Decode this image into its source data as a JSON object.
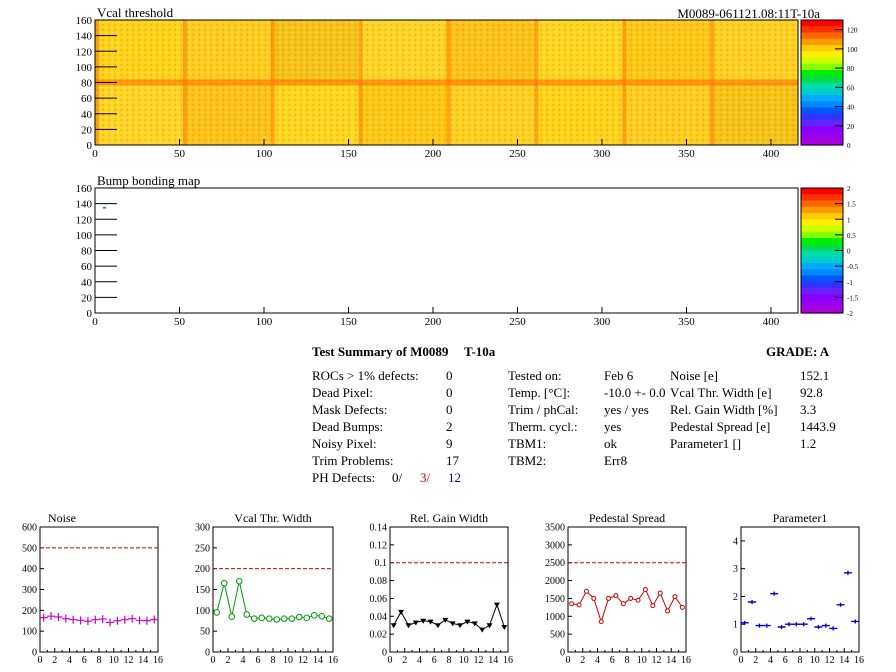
{
  "module_id": "M0089-061121.08:11T-10a",
  "map_vcal": {
    "title": "Vcal threshold",
    "xticks": [
      0,
      50,
      100,
      150,
      200,
      250,
      300,
      350,
      400
    ],
    "yticks": [
      0,
      20,
      40,
      60,
      80,
      100,
      120,
      140,
      160
    ],
    "xrange": [
      0,
      416
    ],
    "yrange": [
      0,
      160
    ],
    "colorbar_ticks": [
      "120",
      "100",
      "80",
      "60",
      "40",
      "20",
      "0"
    ],
    "colorbar_values": [
      120,
      100,
      80,
      60,
      40,
      20,
      0
    ],
    "colorbar_range": [
      0,
      130
    ]
  },
  "map_bump": {
    "title": "Bump bonding map",
    "xticks": [
      0,
      50,
      100,
      150,
      200,
      250,
      300,
      350,
      400
    ],
    "yticks": [
      0,
      20,
      40,
      60,
      80,
      100,
      120,
      140,
      160
    ],
    "xrange": [
      0,
      416
    ],
    "yrange": [
      0,
      160
    ],
    "colorbar_ticks": [
      "2",
      "1.5",
      "1",
      "0.5",
      "0",
      "-0.5",
      "-1",
      "-1.5",
      "-2"
    ],
    "colorbar_values": [
      2,
      1.5,
      1,
      0.5,
      0,
      -0.5,
      -1,
      -1.5,
      -2
    ],
    "colorbar_range": [
      -2,
      2
    ]
  },
  "summary": {
    "title": "Test Summary of M0089",
    "tag": "T-10a",
    "grade": "GRADE:  A",
    "rows": [
      {
        "label": "ROCs > 1% defects:",
        "value": "0"
      },
      {
        "label": "Dead Pixel:",
        "value": "0"
      },
      {
        "label": "Mask Defects:",
        "value": "0"
      },
      {
        "label": "Dead Bumps:",
        "value": "2"
      },
      {
        "label": "Noisy Pixel:",
        "value": "9"
      },
      {
        "label": "Trim Problems:",
        "value": "17"
      }
    ],
    "ph_label": "PH Defects:",
    "ph_values": [
      "0/",
      "3/",
      "12"
    ],
    "tests": [
      {
        "label": "Tested on:",
        "value": "Feb 6"
      },
      {
        "label": "Temp. [°C]:",
        "value": "-10.0 +- 0.0"
      },
      {
        "label": "Trim / phCal:",
        "value": "yes / yes"
      },
      {
        "label": "Therm. cycl.:",
        "value": "yes"
      },
      {
        "label": "TBM1:",
        "value": "ok"
      },
      {
        "label": "TBM2:",
        "value": "Err8"
      }
    ],
    "params": [
      {
        "label": "Noise [e]",
        "value": "152.1"
      },
      {
        "label": "Vcal Thr. Width [e]",
        "value": "92.8"
      },
      {
        "label": "Rel. Gain Width [%]",
        "value": "3.3"
      },
      {
        "label": "Pedestal Spread [e]",
        "value": "1443.9"
      },
      {
        "label": "Parameter1 []",
        "value": "1.2"
      }
    ]
  },
  "chart_data": [
    {
      "type": "scatter",
      "title": "Noise",
      "x": [
        0,
        1,
        2,
        3,
        4,
        5,
        6,
        7,
        8,
        9,
        10,
        11,
        12,
        13,
        14,
        15
      ],
      "values": [
        165,
        172,
        168,
        160,
        155,
        152,
        148,
        155,
        158,
        142,
        150,
        155,
        160,
        152,
        150,
        156
      ],
      "xlim": [
        0,
        16
      ],
      "ylim": [
        0,
        600
      ],
      "xticks": [
        0,
        2,
        4,
        6,
        8,
        10,
        12,
        14,
        16
      ],
      "yticks": [
        0,
        100,
        200,
        300,
        400,
        500,
        600
      ],
      "threshold": 500,
      "color": "#cc00cc",
      "marker": "cross",
      "connect": false
    },
    {
      "type": "line",
      "title": "Vcal Thr. Width",
      "x": [
        0,
        1,
        2,
        3,
        4,
        5,
        6,
        7,
        8,
        9,
        10,
        11,
        12,
        13,
        14,
        15
      ],
      "values": [
        95,
        165,
        85,
        170,
        90,
        80,
        82,
        80,
        78,
        80,
        80,
        84,
        82,
        88,
        86,
        80
      ],
      "xlim": [
        0,
        16
      ],
      "ylim": [
        0,
        300
      ],
      "xticks": [
        0,
        2,
        4,
        6,
        8,
        10,
        12,
        14,
        16
      ],
      "yticks": [
        0,
        50,
        100,
        150,
        200,
        250,
        300
      ],
      "threshold": 200,
      "color": "#009900",
      "marker": "circle",
      "connect": true
    },
    {
      "type": "line",
      "title": "Rel. Gain Width",
      "x": [
        0,
        1,
        2,
        3,
        4,
        5,
        6,
        7,
        8,
        9,
        10,
        11,
        12,
        13,
        14,
        15
      ],
      "values": [
        0.03,
        0.045,
        0.03,
        0.033,
        0.035,
        0.034,
        0.03,
        0.036,
        0.032,
        0.03,
        0.034,
        0.032,
        0.025,
        0.03,
        0.053,
        0.028
      ],
      "xlim": [
        0,
        16
      ],
      "ylim": [
        0,
        0.14
      ],
      "xticks": [
        0,
        2,
        4,
        6,
        8,
        10,
        12,
        14,
        16
      ],
      "yticks": [
        0,
        0.02,
        0.04,
        0.06,
        0.08,
        0.1,
        0.12,
        0.14
      ],
      "ytick_labels": [
        "0",
        "0.02",
        "0.04",
        "0.06",
        "0.08",
        "0.1",
        "0.12",
        "0.14"
      ],
      "threshold": 0.1,
      "color": "#000000",
      "marker": "triangle-down",
      "connect": true
    },
    {
      "type": "line",
      "title": "Pedestal Spread",
      "x": [
        0,
        1,
        2,
        3,
        4,
        5,
        6,
        7,
        8,
        9,
        10,
        11,
        12,
        13,
        14,
        15
      ],
      "values": [
        1350,
        1320,
        1700,
        1500,
        850,
        1500,
        1580,
        1350,
        1500,
        1450,
        1750,
        1300,
        1650,
        1150,
        1550,
        1250
      ],
      "xlim": [
        0,
        16
      ],
      "ylim": [
        0,
        3500
      ],
      "xticks": [
        0,
        2,
        4,
        6,
        8,
        10,
        12,
        14,
        16
      ],
      "yticks": [
        0,
        500,
        1000,
        1500,
        2000,
        2500,
        3000,
        3500
      ],
      "threshold": 2500,
      "color": "#cc0000",
      "marker": "circle-small",
      "connect": true
    },
    {
      "type": "scatter",
      "title": "Parameter1",
      "x": [
        0,
        1,
        2,
        3,
        4,
        5,
        6,
        7,
        8,
        9,
        10,
        11,
        12,
        13,
        14,
        15
      ],
      "values": [
        1.05,
        1.8,
        0.95,
        0.95,
        2.1,
        0.9,
        1.0,
        1.0,
        1.0,
        1.2,
        0.9,
        0.95,
        0.85,
        1.7,
        2.85,
        1.1
      ],
      "xlim": [
        0,
        16
      ],
      "ylim": [
        0,
        4.5
      ],
      "xticks": [
        0,
        2,
        4,
        6,
        8,
        10,
        12,
        14,
        16
      ],
      "yticks": [
        0,
        1,
        2,
        3,
        4
      ],
      "color": "#0000cc",
      "marker": "hbar",
      "connect": false
    }
  ]
}
